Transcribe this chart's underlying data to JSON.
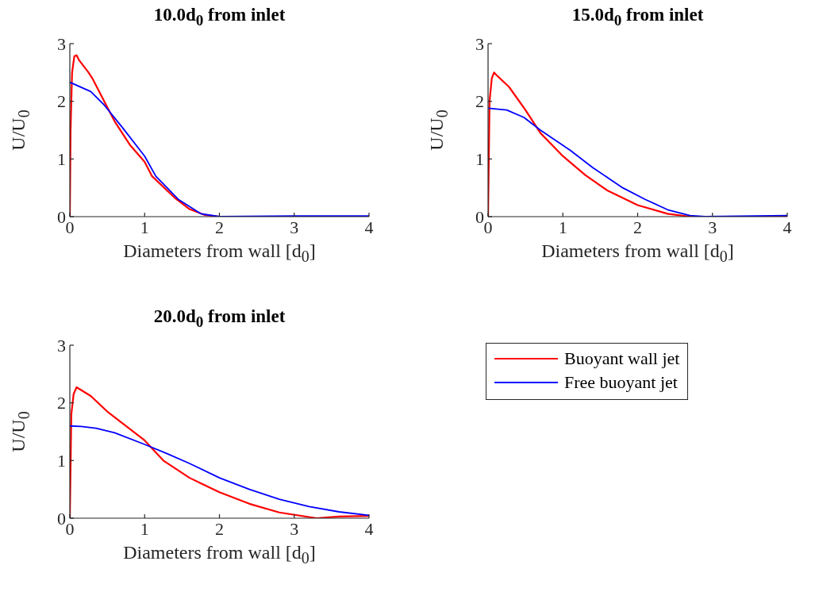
{
  "chart_data": [
    {
      "type": "line",
      "title": "10.0d$_{0}$ from inlet",
      "xlabel": "Diameters from wall [d$_{0}$]",
      "ylabel": "U/U$_{0}$",
      "xlim": [
        0,
        4
      ],
      "ylim": [
        0,
        3
      ],
      "xticks": [
        0,
        1,
        2,
        3,
        4
      ],
      "yticks": [
        0,
        1,
        2,
        3
      ],
      "grid": false,
      "legend": false,
      "marker": "none",
      "line_style": "solid",
      "series": [
        {
          "color": "#ff0000",
          "x": [
            0,
            0.01,
            0.03,
            0.06,
            0.09,
            0.12,
            0.25,
            0.3,
            0.5,
            0.6,
            0.8,
            1.0,
            1.1,
            1.4,
            1.6,
            1.8,
            2.0,
            4
          ],
          "values": [
            0,
            1.5,
            2.5,
            2.78,
            2.8,
            2.72,
            2.5,
            2.4,
            1.9,
            1.65,
            1.25,
            0.95,
            0.7,
            0.33,
            0.13,
            0.03,
            0,
            0
          ]
        },
        {
          "color": "#0000ff",
          "x": [
            0,
            0.28,
            0.45,
            0.7,
            1.0,
            1.15,
            1.45,
            1.75,
            2.0,
            3,
            4
          ],
          "values": [
            2.33,
            2.17,
            1.95,
            1.55,
            1.05,
            0.7,
            0.3,
            0.05,
            0,
            0.01,
            0.01
          ]
        }
      ]
    },
    {
      "type": "line",
      "title": "15.0d$_{0}$ from inlet",
      "xlabel": "Diameters from wall [d$_{0}$]",
      "ylabel": "U/U$_{0}$",
      "xlim": [
        0,
        4
      ],
      "ylim": [
        0,
        3
      ],
      "xticks": [
        0,
        1,
        2,
        3,
        4
      ],
      "yticks": [
        0,
        1,
        2,
        3
      ],
      "grid": false,
      "legend": false,
      "marker": "none",
      "line_style": "solid",
      "series": [
        {
          "color": "#ff0000",
          "x": [
            0,
            0.02,
            0.05,
            0.08,
            0.1,
            0.28,
            0.5,
            0.7,
            1.0,
            1.3,
            1.6,
            2.0,
            2.4,
            2.7,
            4
          ],
          "values": [
            0,
            2.0,
            2.4,
            2.5,
            2.47,
            2.25,
            1.85,
            1.45,
            1.05,
            0.72,
            0.45,
            0.2,
            0.05,
            0,
            0
          ]
        },
        {
          "color": "#0000ff",
          "x": [
            0,
            0.25,
            0.48,
            0.7,
            1.1,
            1.4,
            1.8,
            2.1,
            2.4,
            2.7,
            2.9,
            4
          ],
          "values": [
            1.88,
            1.85,
            1.72,
            1.5,
            1.15,
            0.85,
            0.5,
            0.3,
            0.12,
            0.02,
            0,
            0.02
          ]
        }
      ]
    },
    {
      "type": "line",
      "title": "20.0d$_{0}$ from inlet",
      "xlabel": "Diameters from wall [d$_{0}$]",
      "ylabel": "U/U$_{0}$",
      "xlim": [
        0,
        4
      ],
      "ylim": [
        0,
        3
      ],
      "xticks": [
        0,
        1,
        2,
        3,
        4
      ],
      "yticks": [
        0,
        1,
        2,
        3
      ],
      "grid": false,
      "legend": "right",
      "marker": "none",
      "line_style": "solid",
      "series": [
        {
          "name": "Buoyant wall jet",
          "color": "#ff0000",
          "x": [
            0,
            0.02,
            0.05,
            0.09,
            0.28,
            0.5,
            0.8,
            1.0,
            1.25,
            1.6,
            2.0,
            2.4,
            2.8,
            3.3,
            3.6,
            4
          ],
          "values": [
            0,
            1.8,
            2.15,
            2.27,
            2.12,
            1.85,
            1.55,
            1.35,
            1.0,
            0.7,
            0.45,
            0.25,
            0.1,
            0,
            0.03,
            0.04
          ]
        },
        {
          "name": "Free buoyant jet",
          "color": "#0000ff",
          "x": [
            0,
            0.15,
            0.35,
            0.6,
            1.0,
            1.3,
            1.6,
            2.0,
            2.4,
            2.8,
            3.2,
            3.6,
            4
          ],
          "values": [
            1.6,
            1.59,
            1.56,
            1.48,
            1.28,
            1.12,
            0.95,
            0.7,
            0.5,
            0.33,
            0.2,
            0.11,
            0.05
          ]
        }
      ]
    }
  ]
}
